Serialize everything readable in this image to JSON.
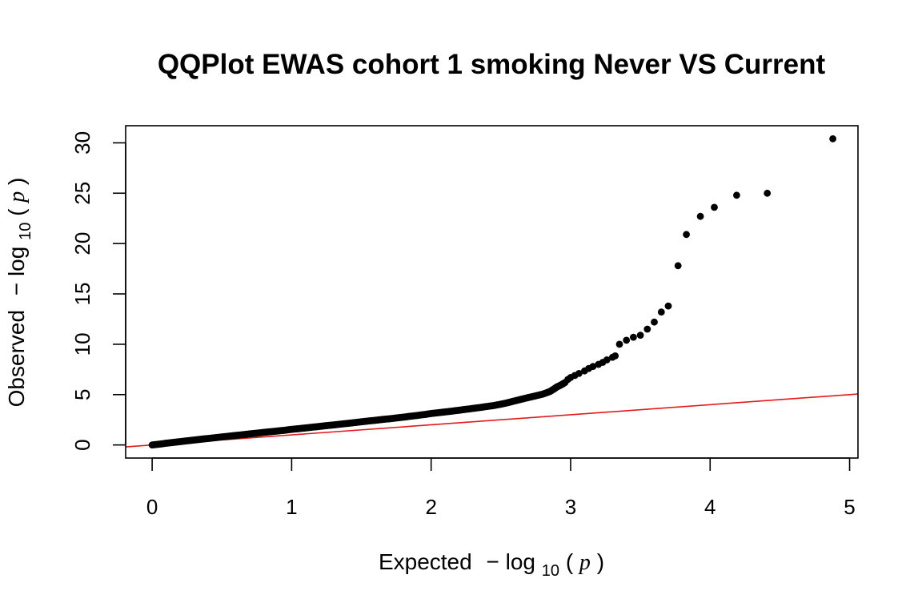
{
  "chart_data": {
    "type": "scatter",
    "title": "QQPlot EWAS cohort 1 smoking Never VS Current",
    "xlabel": {
      "prefix": "Expected",
      "minus": "−",
      "log": "log",
      "base": "10",
      "open": "(",
      "var": "p",
      "close": ")"
    },
    "ylabel": {
      "prefix": "Observed",
      "minus": "−",
      "log": "log",
      "base": "10",
      "open": "(",
      "var": "p",
      "close": ")"
    },
    "x_ticks": [
      0,
      1,
      2,
      3,
      4,
      5
    ],
    "y_ticks": [
      0,
      5,
      10,
      15,
      20,
      25,
      30
    ],
    "xlim": [
      -0.19,
      5.06
    ],
    "ylim": [
      -1.3,
      31.7
    ],
    "grid": false,
    "reference_line": {
      "intercept": 0,
      "slope": 1,
      "color": "#e41a1c"
    },
    "point_color": "#000000",
    "series": [
      {
        "values": [
          [
            0.0,
            0.0
          ],
          [
            0.05,
            0.08
          ],
          [
            0.1,
            0.17
          ],
          [
            0.15,
            0.25
          ],
          [
            0.2,
            0.33
          ],
          [
            0.25,
            0.41
          ],
          [
            0.3,
            0.49
          ],
          [
            0.35,
            0.57
          ],
          [
            0.4,
            0.64
          ],
          [
            0.45,
            0.72
          ],
          [
            0.5,
            0.8
          ],
          [
            0.55,
            0.87
          ],
          [
            0.6,
            0.95
          ],
          [
            0.65,
            1.02
          ],
          [
            0.7,
            1.1
          ],
          [
            0.75,
            1.17
          ],
          [
            0.8,
            1.25
          ],
          [
            0.85,
            1.32
          ],
          [
            0.9,
            1.39
          ],
          [
            0.95,
            1.46
          ],
          [
            1.0,
            1.55
          ],
          [
            1.05,
            1.62
          ],
          [
            1.1,
            1.69
          ],
          [
            1.15,
            1.77
          ],
          [
            1.2,
            1.84
          ],
          [
            1.25,
            1.92
          ],
          [
            1.3,
            1.99
          ],
          [
            1.35,
            2.07
          ],
          [
            1.4,
            2.14
          ],
          [
            1.45,
            2.22
          ],
          [
            1.5,
            2.3
          ],
          [
            1.55,
            2.38
          ],
          [
            1.6,
            2.45
          ],
          [
            1.65,
            2.53
          ],
          [
            1.7,
            2.6
          ],
          [
            1.75,
            2.68
          ],
          [
            1.8,
            2.76
          ],
          [
            1.85,
            2.85
          ],
          [
            1.9,
            2.93
          ],
          [
            1.95,
            3.02
          ],
          [
            2.0,
            3.12
          ],
          [
            2.05,
            3.2
          ],
          [
            2.1,
            3.28
          ],
          [
            2.15,
            3.36
          ],
          [
            2.2,
            3.45
          ],
          [
            2.25,
            3.54
          ],
          [
            2.3,
            3.63
          ],
          [
            2.35,
            3.72
          ],
          [
            2.4,
            3.82
          ],
          [
            2.45,
            3.92
          ],
          [
            2.5,
            4.05
          ],
          [
            2.55,
            4.2
          ],
          [
            2.6,
            4.38
          ],
          [
            2.65,
            4.55
          ],
          [
            2.7,
            4.72
          ],
          [
            2.75,
            4.88
          ],
          [
            2.8,
            5.05
          ],
          [
            2.85,
            5.3
          ],
          [
            2.88,
            5.55
          ],
          [
            2.9,
            5.75
          ],
          [
            2.93,
            5.95
          ],
          [
            2.96,
            6.2
          ],
          [
            2.98,
            6.5
          ],
          [
            3.0,
            6.7
          ],
          [
            3.03,
            6.9
          ],
          [
            3.06,
            7.1
          ],
          [
            3.1,
            7.35
          ],
          [
            3.13,
            7.6
          ],
          [
            3.16,
            7.8
          ],
          [
            3.2,
            8.0
          ],
          [
            3.23,
            8.2
          ],
          [
            3.26,
            8.45
          ],
          [
            3.3,
            8.7
          ],
          [
            3.32,
            8.85
          ],
          [
            3.35,
            10.0
          ],
          [
            3.4,
            10.4
          ],
          [
            3.45,
            10.7
          ],
          [
            3.5,
            10.9
          ],
          [
            3.55,
            11.5
          ],
          [
            3.6,
            12.2
          ],
          [
            3.65,
            13.2
          ],
          [
            3.7,
            13.8
          ],
          [
            3.77,
            17.8
          ],
          [
            3.83,
            20.9
          ],
          [
            3.93,
            22.7
          ],
          [
            4.03,
            23.6
          ],
          [
            4.19,
            24.8
          ],
          [
            4.41,
            25.0
          ],
          [
            4.88,
            30.4
          ]
        ]
      }
    ]
  }
}
